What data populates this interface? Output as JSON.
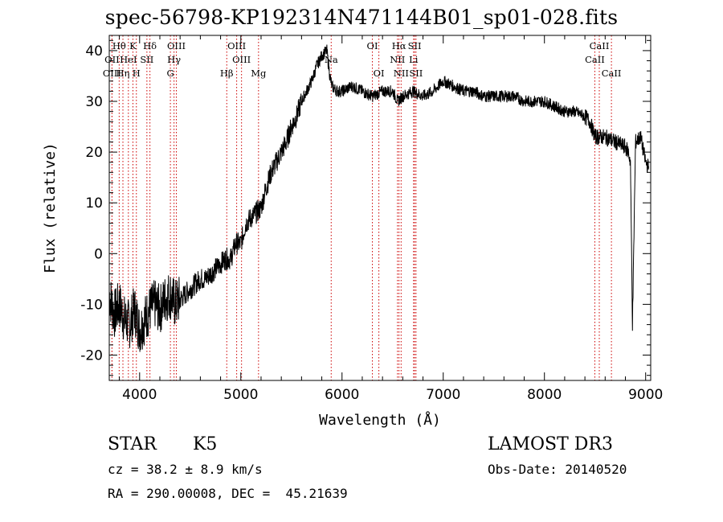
{
  "chart_data": {
    "type": "line",
    "title": "spec-56798-KP192314N471144B01_sp01-028.fits",
    "xlabel": "Wavelength (Å)",
    "ylabel": "Flux (relative)",
    "xlim": [
      3700,
      9050
    ],
    "ylim": [
      -25,
      43
    ],
    "xticks": [
      4000,
      5000,
      6000,
      7000,
      8000,
      9000
    ],
    "yticks": [
      -20,
      -10,
      0,
      10,
      20,
      30,
      40
    ],
    "series": [
      {
        "name": "flux",
        "x": [
          3700,
          3750,
          3800,
          3850,
          3900,
          3950,
          4000,
          4050,
          4100,
          4150,
          4200,
          4250,
          4300,
          4350,
          4400,
          4450,
          4500,
          4550,
          4600,
          4650,
          4700,
          4750,
          4800,
          4850,
          4900,
          4950,
          5000,
          5050,
          5100,
          5150,
          5200,
          5250,
          5300,
          5350,
          5400,
          5450,
          5500,
          5550,
          5600,
          5650,
          5700,
          5750,
          5800,
          5850,
          5880,
          5900,
          5950,
          6000,
          6100,
          6200,
          6300,
          6400,
          6500,
          6550,
          6600,
          6700,
          6800,
          6900,
          7000,
          7100,
          7200,
          7300,
          7400,
          7500,
          7600,
          7700,
          7800,
          7900,
          8000,
          8100,
          8200,
          8300,
          8400,
          8450,
          8500,
          8600,
          8700,
          8800,
          8830,
          8850,
          8870,
          8900,
          8950,
          9000,
          9030
        ],
        "values": [
          -8,
          -12,
          -10,
          -13,
          -14,
          -11,
          -15,
          -13,
          -11,
          -10,
          -11,
          -9,
          -8,
          -10,
          -9,
          -8,
          -7,
          -6,
          -5,
          -5,
          -4,
          -3,
          -2,
          -1,
          -1,
          2,
          2,
          6,
          7,
          8,
          9,
          13,
          16,
          18,
          20,
          22,
          25,
          27,
          30,
          32,
          34,
          37,
          39,
          40,
          35,
          33,
          32,
          32,
          33,
          32,
          31,
          32,
          32,
          30,
          31,
          32,
          31,
          32,
          34,
          33,
          32,
          32,
          31,
          31,
          31,
          31,
          30,
          30,
          30,
          29,
          28,
          28,
          27,
          26,
          23,
          23,
          22,
          21,
          20,
          18,
          -14,
          22,
          23,
          18,
          17
        ]
      }
    ],
    "emission_lines": [
      {
        "label": "Hθ",
        "x": 3798,
        "row": 1
      },
      {
        "label": "OII",
        "x": 3727,
        "row": 2
      },
      {
        "label": "HeI",
        "x": 3889,
        "row": 2
      },
      {
        "label": "K",
        "x": 3934,
        "row": 1
      },
      {
        "label": "SII",
        "x": 4072,
        "row": 2
      },
      {
        "label": "Hδ",
        "x": 4102,
        "row": 1
      },
      {
        "label": "OIII",
        "x": 4363,
        "row": 1
      },
      {
        "label": "Hγ",
        "x": 4340,
        "row": 2
      },
      {
        "label": "OIII",
        "x": 4959,
        "row": 1
      },
      {
        "label": "OIII",
        "x": 5007,
        "row": 2
      },
      {
        "label": "OI",
        "x": 6300,
        "row": 1
      },
      {
        "label": "OI",
        "x": 6364,
        "row": 3
      },
      {
        "label": "Hα",
        "x": 6563,
        "row": 1
      },
      {
        "label": "SII",
        "x": 6717,
        "row": 1
      },
      {
        "label": "NII",
        "x": 6548,
        "row": 2
      },
      {
        "label": "NII",
        "x": 6584,
        "row": 3
      },
      {
        "label": "SII",
        "x": 6731,
        "row": 3
      },
      {
        "label": "Li",
        "x": 6707,
        "row": 2
      },
      {
        "label": "CaII",
        "x": 8542,
        "row": 1
      },
      {
        "label": "CaII",
        "x": 8498,
        "row": 2
      }
    ],
    "absorption_lines": [
      {
        "label": "OIII",
        "x": 3727,
        "row": 3
      },
      {
        "label": "Hη",
        "x": 3835,
        "row": 3
      },
      {
        "label": "H",
        "x": 3968,
        "row": 3
      },
      {
        "label": "G",
        "x": 4304,
        "row": 3
      },
      {
        "label": "Hβ",
        "x": 4861,
        "row": 3
      },
      {
        "label": "Mg",
        "x": 5175,
        "row": 3
      },
      {
        "label": "Na",
        "x": 5893,
        "row": 2
      },
      {
        "label": "CaII",
        "x": 8662,
        "row": 3
      }
    ]
  },
  "info": {
    "class": "STAR",
    "subclass": "K5",
    "survey": "LAMOST DR3",
    "cz": "cz = 38.2 ± 8.9 km/s",
    "obs_date": "Obs-Date: 20140520",
    "coords": "RA = 290.00008, DEC =  45.21639"
  },
  "colors": {
    "line": "#000000",
    "marker": "#cc0000"
  }
}
